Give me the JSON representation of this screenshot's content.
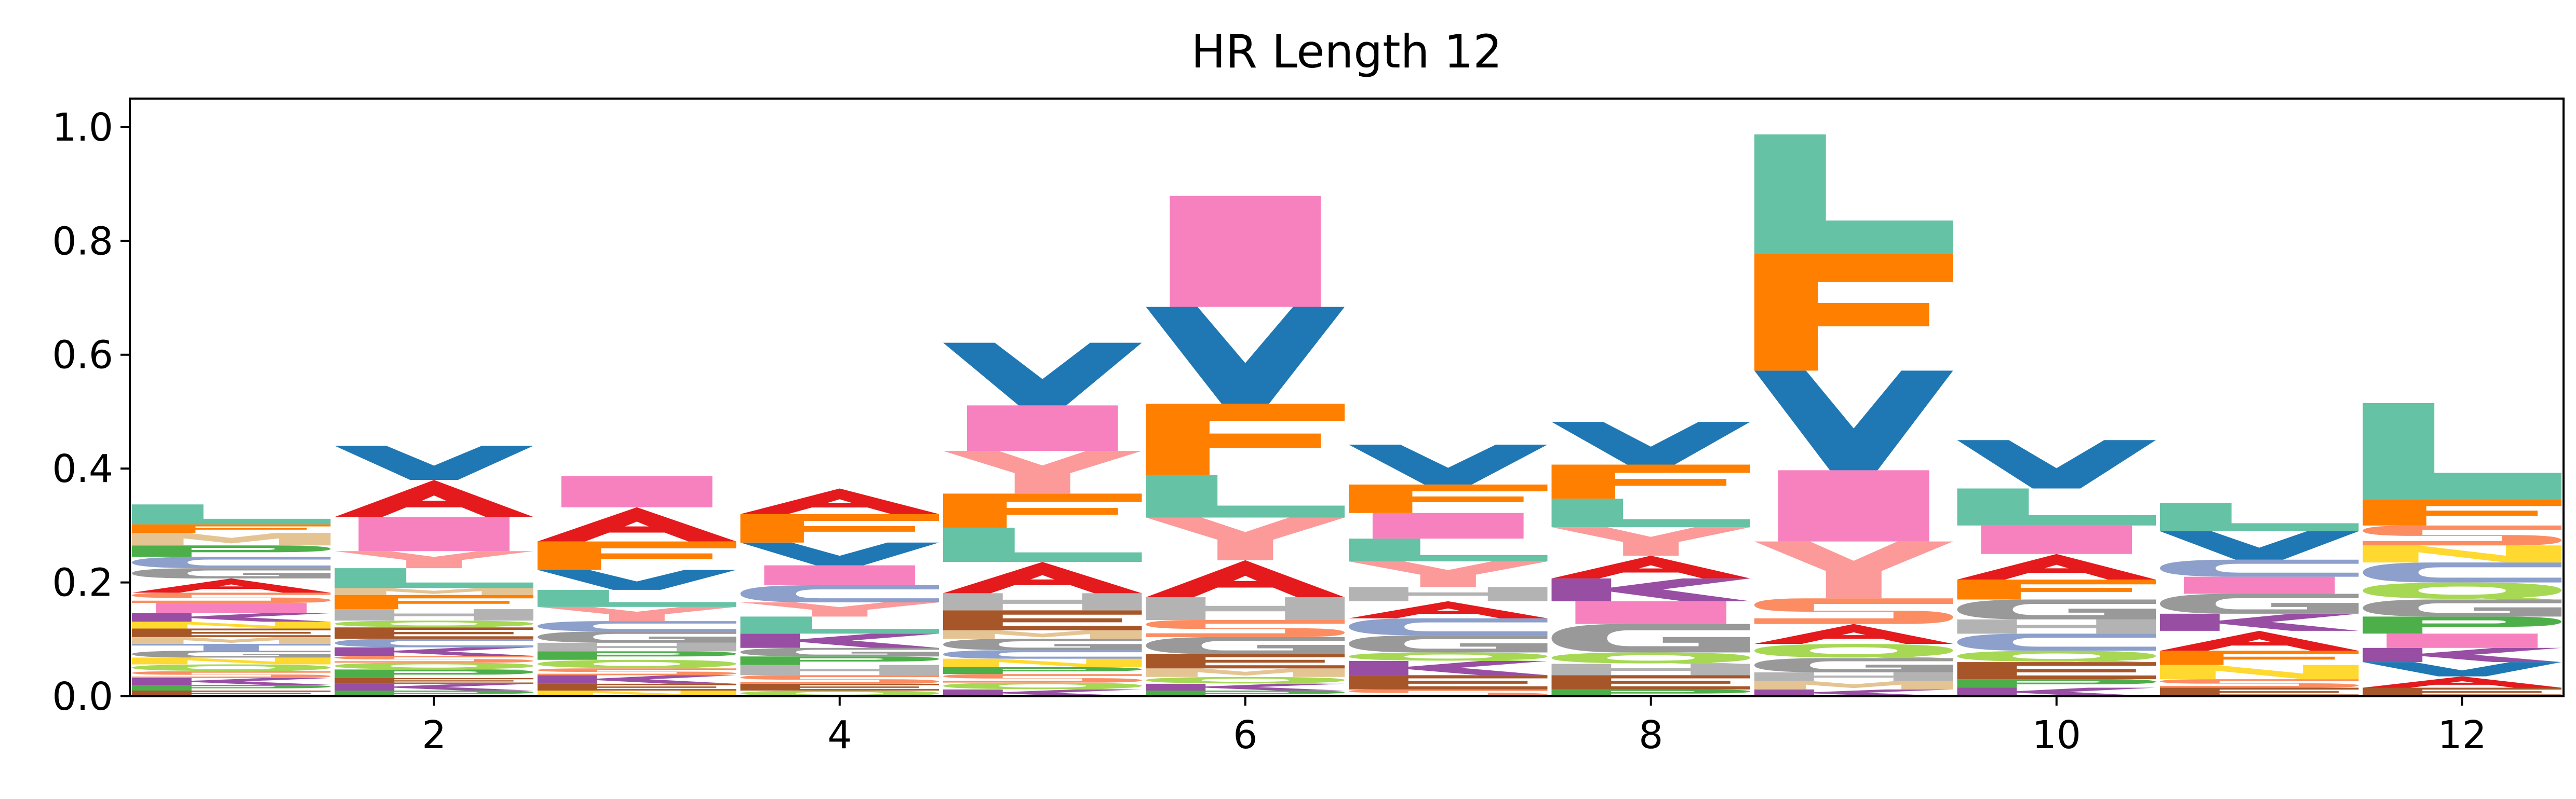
{
  "chart_data": {
    "type": "sequence-logo",
    "title": "HR Length 12",
    "xlabel": "",
    "ylabel": "",
    "xlim": [
      0.5,
      12.5
    ],
    "ylim": [
      0,
      1.05
    ],
    "x_ticks": [
      2,
      4,
      6,
      8,
      10,
      12
    ],
    "y_ticks": [
      0.0,
      0.2,
      0.4,
      0.6,
      0.8,
      1.0
    ],
    "y_tick_labels": [
      "0.0",
      "0.2",
      "0.4",
      "0.6",
      "0.8",
      "1.0"
    ],
    "x_tick_labels": [
      "2",
      "4",
      "6",
      "8",
      "10",
      "12"
    ],
    "grid": false,
    "letter_colors": {
      "A": "#e41a1c",
      "C": "#8da0cb",
      "D": "#a6cee3",
      "E": "#a65628",
      "F": "#ff7f00",
      "G": "#999999",
      "H": "#b3b3b3",
      "I": "#f781bf",
      "K": "#984ea3",
      "L": "#66c2a5",
      "M": "#e5c494",
      "N": "#ffd92f",
      "P": "#4daf4a",
      "Q": "#a6d854",
      "R": "#ffff33",
      "S": "#fc8d62",
      "T": "#8da0cb",
      "V": "#1f78b4",
      "W": "#4daf4a",
      "Y": "#fb9a99"
    },
    "positions": [
      {
        "x": 1,
        "stack": [
          {
            "letter": "E",
            "value": 0.01
          },
          {
            "letter": "P",
            "value": 0.01
          },
          {
            "letter": "K",
            "value": 0.012
          },
          {
            "letter": "S",
            "value": 0.012
          },
          {
            "letter": "Q",
            "value": 0.012
          },
          {
            "letter": "N",
            "value": 0.012
          },
          {
            "letter": "G",
            "value": 0.012
          },
          {
            "letter": "T",
            "value": 0.012
          },
          {
            "letter": "M",
            "value": 0.012
          },
          {
            "letter": "E",
            "value": 0.015
          },
          {
            "letter": "N",
            "value": 0.012
          },
          {
            "letter": "K",
            "value": 0.015
          },
          {
            "letter": "I",
            "value": 0.018
          },
          {
            "letter": "S",
            "value": 0.018
          },
          {
            "letter": "A",
            "value": 0.025
          },
          {
            "letter": "G",
            "value": 0.018
          },
          {
            "letter": "C",
            "value": 0.02
          },
          {
            "letter": "P",
            "value": 0.02
          },
          {
            "letter": "M",
            "value": 0.022
          },
          {
            "letter": "F",
            "value": 0.015
          },
          {
            "letter": "L",
            "value": 0.035
          }
        ]
      },
      {
        "x": 2,
        "stack": [
          {
            "letter": "P",
            "value": 0.01
          },
          {
            "letter": "K",
            "value": 0.012
          },
          {
            "letter": "E",
            "value": 0.01
          },
          {
            "letter": "P",
            "value": 0.015
          },
          {
            "letter": "Q",
            "value": 0.012
          },
          {
            "letter": "S",
            "value": 0.012
          },
          {
            "letter": "K",
            "value": 0.015
          },
          {
            "letter": "C",
            "value": 0.015
          },
          {
            "letter": "E",
            "value": 0.02
          },
          {
            "letter": "Q",
            "value": 0.012
          },
          {
            "letter": "H",
            "value": 0.02
          },
          {
            "letter": "F",
            "value": 0.025
          },
          {
            "letter": "M",
            "value": 0.012
          },
          {
            "letter": "L",
            "value": 0.035
          },
          {
            "letter": "Y",
            "value": 0.03
          },
          {
            "letter": "I",
            "value": 0.06
          },
          {
            "letter": "A",
            "value": 0.065
          },
          {
            "letter": "V",
            "value": 0.06
          }
        ]
      },
      {
        "x": 3,
        "stack": [
          {
            "letter": "N",
            "value": 0.01
          },
          {
            "letter": "E",
            "value": 0.012
          },
          {
            "letter": "K",
            "value": 0.015
          },
          {
            "letter": "S",
            "value": 0.012
          },
          {
            "letter": "Q",
            "value": 0.015
          },
          {
            "letter": "P",
            "value": 0.015
          },
          {
            "letter": "H",
            "value": 0.015
          },
          {
            "letter": "G",
            "value": 0.02
          },
          {
            "letter": "C",
            "value": 0.018
          },
          {
            "letter": "Y",
            "value": 0.025
          },
          {
            "letter": "L",
            "value": 0.03
          },
          {
            "letter": "V",
            "value": 0.035
          },
          {
            "letter": "F",
            "value": 0.05
          },
          {
            "letter": "A",
            "value": 0.06
          },
          {
            "letter": "I",
            "value": 0.055
          }
        ]
      },
      {
        "x": 4,
        "stack": [
          {
            "letter": "Q",
            "value": 0.01
          },
          {
            "letter": "E",
            "value": 0.012
          },
          {
            "letter": "S",
            "value": 0.015
          },
          {
            "letter": "H",
            "value": 0.018
          },
          {
            "letter": "P",
            "value": 0.015
          },
          {
            "letter": "G",
            "value": 0.015
          },
          {
            "letter": "K",
            "value": 0.025
          },
          {
            "letter": "L",
            "value": 0.03
          },
          {
            "letter": "Y",
            "value": 0.025
          },
          {
            "letter": "C",
            "value": 0.03
          },
          {
            "letter": "I",
            "value": 0.035
          },
          {
            "letter": "V",
            "value": 0.04
          },
          {
            "letter": "F",
            "value": 0.05
          },
          {
            "letter": "A",
            "value": 0.045
          }
        ]
      },
      {
        "x": 5,
        "stack": [
          {
            "letter": "K",
            "value": 0.012
          },
          {
            "letter": "Q",
            "value": 0.012
          },
          {
            "letter": "S",
            "value": 0.015
          },
          {
            "letter": "P",
            "value": 0.012
          },
          {
            "letter": "N",
            "value": 0.015
          },
          {
            "letter": "C",
            "value": 0.015
          },
          {
            "letter": "G",
            "value": 0.02
          },
          {
            "letter": "M",
            "value": 0.015
          },
          {
            "letter": "E",
            "value": 0.035
          },
          {
            "letter": "H",
            "value": 0.03
          },
          {
            "letter": "A",
            "value": 0.055
          },
          {
            "letter": "L",
            "value": 0.06
          },
          {
            "letter": "F",
            "value": 0.06
          },
          {
            "letter": "Y",
            "value": 0.075
          },
          {
            "letter": "I",
            "value": 0.08
          },
          {
            "letter": "V",
            "value": 0.11
          }
        ]
      },
      {
        "x": 6,
        "stack": [
          {
            "letter": "P",
            "value": 0.01
          },
          {
            "letter": "K",
            "value": 0.012
          },
          {
            "letter": "Q",
            "value": 0.012
          },
          {
            "letter": "M",
            "value": 0.015
          },
          {
            "letter": "E",
            "value": 0.025
          },
          {
            "letter": "G",
            "value": 0.03
          },
          {
            "letter": "S",
            "value": 0.03
          },
          {
            "letter": "H",
            "value": 0.04
          },
          {
            "letter": "A",
            "value": 0.065
          },
          {
            "letter": "Y",
            "value": 0.075
          },
          {
            "letter": "L",
            "value": 0.075
          },
          {
            "letter": "F",
            "value": 0.125
          },
          {
            "letter": "V",
            "value": 0.17
          },
          {
            "letter": "I",
            "value": 0.195
          }
        ]
      },
      {
        "x": 7,
        "stack": [
          {
            "letter": "S",
            "value": 0.012
          },
          {
            "letter": "E",
            "value": 0.025
          },
          {
            "letter": "K",
            "value": 0.025
          },
          {
            "letter": "Q",
            "value": 0.015
          },
          {
            "letter": "G",
            "value": 0.03
          },
          {
            "letter": "C",
            "value": 0.03
          },
          {
            "letter": "A",
            "value": 0.03
          },
          {
            "letter": "H",
            "value": 0.025
          },
          {
            "letter": "Y",
            "value": 0.045
          },
          {
            "letter": "L",
            "value": 0.04
          },
          {
            "letter": "I",
            "value": 0.045
          },
          {
            "letter": "F",
            "value": 0.05
          },
          {
            "letter": "V",
            "value": 0.07
          }
        ]
      },
      {
        "x": 8,
        "stack": [
          {
            "letter": "P",
            "value": 0.012
          },
          {
            "letter": "E",
            "value": 0.025
          },
          {
            "letter": "H",
            "value": 0.02
          },
          {
            "letter": "Q",
            "value": 0.02
          },
          {
            "letter": "G",
            "value": 0.05
          },
          {
            "letter": "I",
            "value": 0.04
          },
          {
            "letter": "K",
            "value": 0.04
          },
          {
            "letter": "A",
            "value": 0.04
          },
          {
            "letter": "Y",
            "value": 0.05
          },
          {
            "letter": "L",
            "value": 0.05
          },
          {
            "letter": "F",
            "value": 0.06
          },
          {
            "letter": "V",
            "value": 0.075
          }
        ]
      },
      {
        "x": 9,
        "stack": [
          {
            "letter": "K",
            "value": 0.012
          },
          {
            "letter": "M",
            "value": 0.015
          },
          {
            "letter": "H",
            "value": 0.015
          },
          {
            "letter": "G",
            "value": 0.025
          },
          {
            "letter": "Q",
            "value": 0.025
          },
          {
            "letter": "A",
            "value": 0.035
          },
          {
            "letter": "S",
            "value": 0.045
          },
          {
            "letter": "Y",
            "value": 0.1
          },
          {
            "letter": "I",
            "value": 0.125
          },
          {
            "letter": "V",
            "value": 0.175
          },
          {
            "letter": "F",
            "value": 0.205
          },
          {
            "letter": "L",
            "value": 0.21
          }
        ]
      },
      {
        "x": 10,
        "stack": [
          {
            "letter": "K",
            "value": 0.015
          },
          {
            "letter": "P",
            "value": 0.015
          },
          {
            "letter": "E",
            "value": 0.03
          },
          {
            "letter": "Q",
            "value": 0.02
          },
          {
            "letter": "C",
            "value": 0.03
          },
          {
            "letter": "H",
            "value": 0.025
          },
          {
            "letter": "G",
            "value": 0.035
          },
          {
            "letter": "F",
            "value": 0.035
          },
          {
            "letter": "A",
            "value": 0.045
          },
          {
            "letter": "I",
            "value": 0.05
          },
          {
            "letter": "L",
            "value": 0.065
          },
          {
            "letter": "V",
            "value": 0.085
          }
        ]
      },
      {
        "x": 11,
        "stack": [
          {
            "letter": "E",
            "value": 0.015
          },
          {
            "letter": "S",
            "value": 0.015
          },
          {
            "letter": "N",
            "value": 0.025
          },
          {
            "letter": "F",
            "value": 0.025
          },
          {
            "letter": "A",
            "value": 0.035
          },
          {
            "letter": "K",
            "value": 0.03
          },
          {
            "letter": "G",
            "value": 0.035
          },
          {
            "letter": "I",
            "value": 0.03
          },
          {
            "letter": "C",
            "value": 0.03
          },
          {
            "letter": "V",
            "value": 0.05
          },
          {
            "letter": "L",
            "value": 0.05
          }
        ]
      },
      {
        "x": 12,
        "stack": [
          {
            "letter": "E",
            "value": 0.015
          },
          {
            "letter": "A",
            "value": 0.02
          },
          {
            "letter": "V",
            "value": 0.025
          },
          {
            "letter": "K",
            "value": 0.025
          },
          {
            "letter": "I",
            "value": 0.025
          },
          {
            "letter": "P",
            "value": 0.03
          },
          {
            "letter": "G",
            "value": 0.03
          },
          {
            "letter": "Q",
            "value": 0.03
          },
          {
            "letter": "C",
            "value": 0.035
          },
          {
            "letter": "N",
            "value": 0.03
          },
          {
            "letter": "S",
            "value": 0.035
          },
          {
            "letter": "F",
            "value": 0.045
          },
          {
            "letter": "L",
            "value": 0.17
          }
        ]
      }
    ]
  }
}
